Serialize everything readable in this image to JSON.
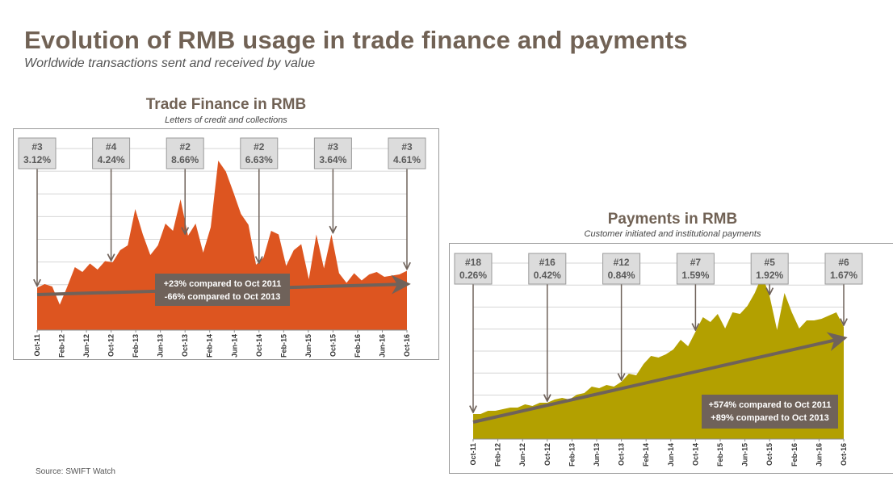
{
  "page": {
    "title": "Evolution of RMB usage in trade finance and payments",
    "subtitle": "Worldwide transactions sent and received by value",
    "source": "Source: SWIFT Watch"
  },
  "colors": {
    "title": "#716255",
    "trade_finance_fill": "#dd5520",
    "payments_fill": "#b3a000",
    "arrow": "#6f625a",
    "annotation_box_fill": "#dcdcdc",
    "annotation_box_border": "#9a9a9a",
    "gridline": "#d6d6d6",
    "info_box_fill": "#6f625a"
  },
  "chart_data": [
    {
      "id": "trade-finance",
      "type": "area",
      "title": "Trade Finance in RMB",
      "subtitle": "Letters of credit and collections",
      "x_tick_labels": [
        "Oct-11",
        "Feb-12",
        "Jun-12",
        "Oct-12",
        "Feb-13",
        "Jun-13",
        "Oct-13",
        "Feb-14",
        "Jun-14",
        "Oct-14",
        "Feb-15",
        "Jun-15",
        "Oct-15",
        "Feb-16",
        "Jun-16",
        "Oct-16"
      ],
      "x_start": "Oct-11",
      "x_end": "Oct-16",
      "y_axis": {
        "tick_labels_shown": false,
        "relative_range": [
          0,
          1
        ],
        "gridline_count": 8
      },
      "grid": true,
      "series": [
        {
          "relative_values": [
            0.27,
            0.3,
            0.28,
            0.13,
            0.28,
            0.44,
            0.4,
            0.47,
            0.42,
            0.49,
            0.48,
            0.58,
            0.62,
            0.92,
            0.71,
            0.54,
            0.62,
            0.8,
            0.74,
            1.0,
            0.7,
            0.8,
            0.56,
            0.77,
            1.32,
            1.23,
            1.06,
            0.88,
            0.79,
            0.46,
            0.52,
            0.74,
            0.71,
            0.45,
            0.58,
            0.63,
            0.34,
            0.71,
            0.43,
            0.71,
            0.39,
            0.31,
            0.39,
            0.33,
            0.38,
            0.4,
            0.36,
            0.37,
            0.38,
            0.41
          ]
        }
      ],
      "annotations": [
        {
          "date": "Oct-11",
          "rank": "#3",
          "share": "3.12%"
        },
        {
          "date": "Oct-12",
          "rank": "#4",
          "share": "4.24%"
        },
        {
          "date": "Oct-13",
          "rank": "#2",
          "share": "8.66%"
        },
        {
          "date": "Oct-14",
          "rank": "#2",
          "share": "6.63%"
        },
        {
          "date": "Oct-15",
          "rank": "#3",
          "share": "3.64%"
        },
        {
          "date": "Oct-16",
          "rank": "#3",
          "share": "4.61%"
        }
      ],
      "trend_text": [
        "+23% compared to Oct 2011",
        "-66% compared to Oct 2013"
      ]
    },
    {
      "id": "payments",
      "type": "area",
      "title": "Payments in RMB",
      "subtitle": "Customer initiated and institutional payments",
      "x_tick_labels": [
        "Oct-11",
        "Feb-12",
        "Jun-12",
        "Oct-12",
        "Feb-13",
        "Jun-13",
        "Oct-13",
        "Feb-14",
        "Jun-14",
        "Oct-14",
        "Feb-15",
        "Jun-15",
        "Oct-15",
        "Feb-16",
        "Jun-16",
        "Oct-16"
      ],
      "x_start": "Oct-11",
      "x_end": "Oct-16",
      "y_axis": {
        "tick_labels_shown": false,
        "relative_range": [
          0,
          1
        ],
        "gridline_count": 8
      },
      "grid": true,
      "series": [
        {
          "relative_values": [
            0.05,
            0.05,
            0.07,
            0.07,
            0.08,
            0.09,
            0.09,
            0.11,
            0.1,
            0.12,
            0.12,
            0.14,
            0.15,
            0.14,
            0.17,
            0.18,
            0.22,
            0.21,
            0.23,
            0.22,
            0.25,
            0.3,
            0.29,
            0.36,
            0.41,
            0.4,
            0.42,
            0.45,
            0.51,
            0.47,
            0.56,
            0.65,
            0.62,
            0.67,
            0.58,
            0.68,
            0.67,
            0.72,
            0.8,
            0.91,
            0.78,
            0.57,
            0.8,
            0.68,
            0.58,
            0.63,
            0.63,
            0.64,
            0.66,
            0.68,
            0.59
          ]
        }
      ],
      "annotations": [
        {
          "date": "Oct-11",
          "rank": "#18",
          "share": "0.26%"
        },
        {
          "date": "Oct-12",
          "rank": "#16",
          "share": "0.42%"
        },
        {
          "date": "Oct-13",
          "rank": "#12",
          "share": "0.84%"
        },
        {
          "date": "Oct-14",
          "rank": "#7",
          "share": "1.59%"
        },
        {
          "date": "Oct-15",
          "rank": "#5",
          "share": "1.92%"
        },
        {
          "date": "Oct-16",
          "rank": "#6",
          "share": "1.67%"
        }
      ],
      "trend_text": [
        "+574% compared to Oct 2011",
        "+89% compared to Oct 2013"
      ]
    }
  ]
}
